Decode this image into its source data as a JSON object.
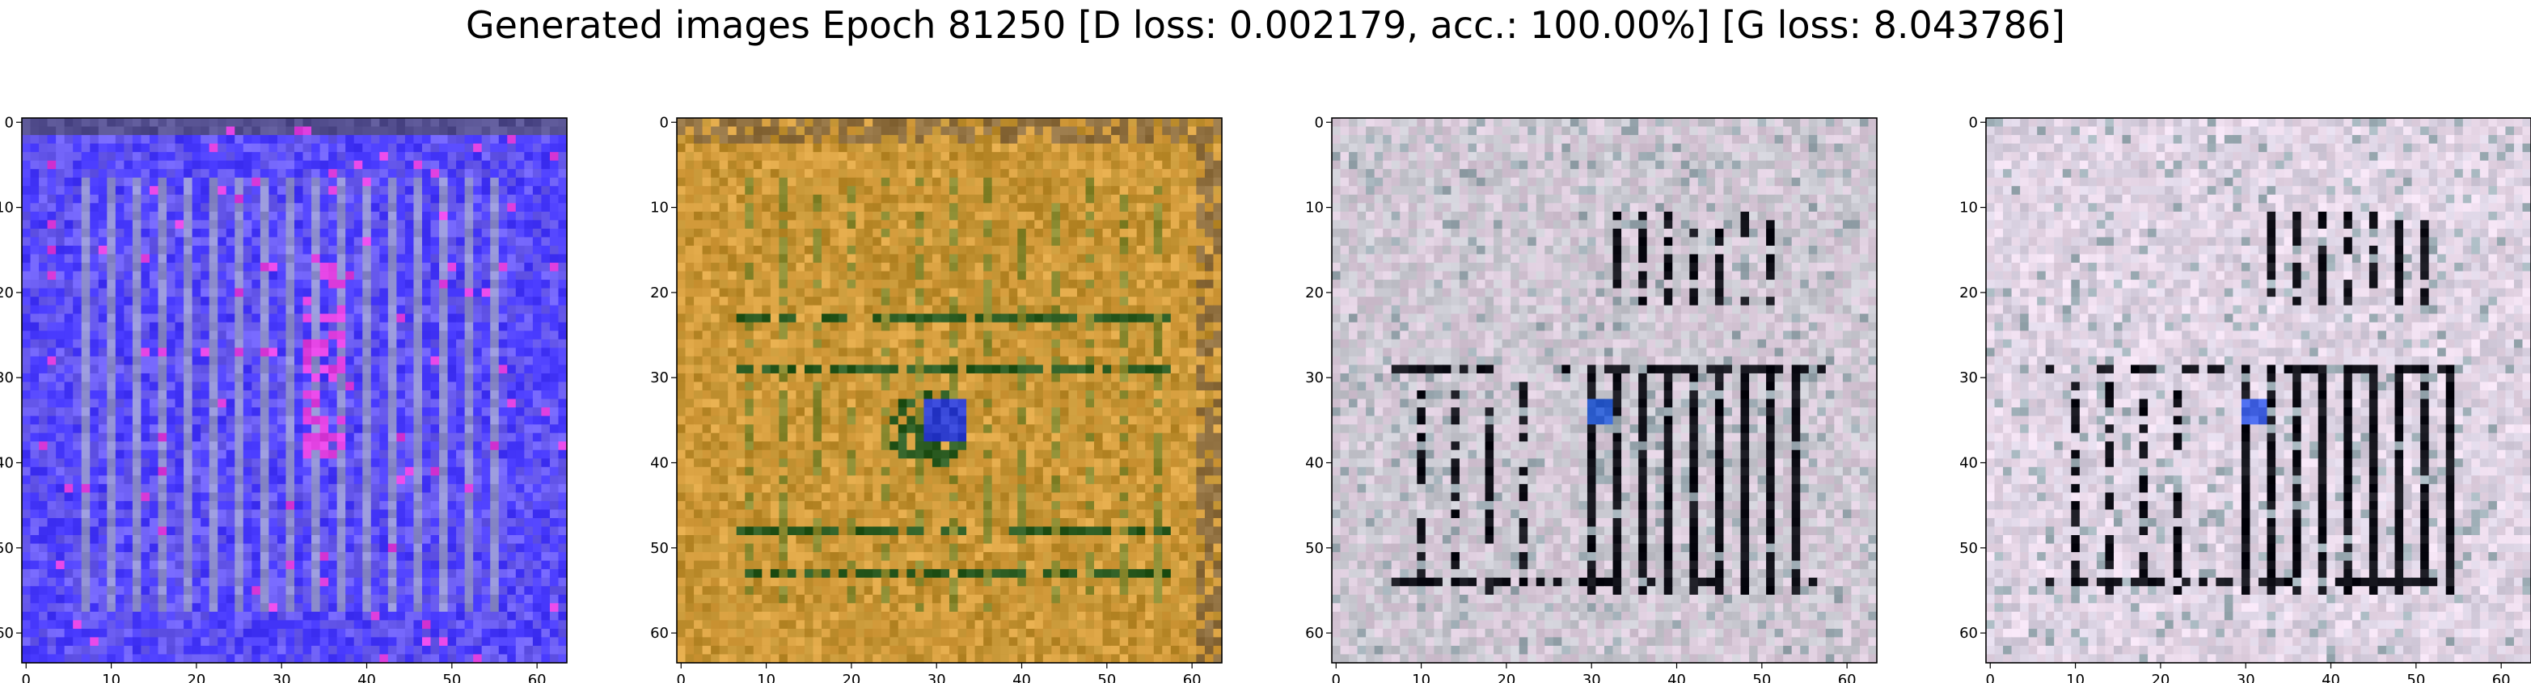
{
  "figure": {
    "title": "Generated images Epoch 81250 [D loss: 0.002179, acc.: 100.00%] [G loss: 8.043786]"
  },
  "chart_data": [
    {
      "type": "heatmap",
      "panel": "image-1",
      "xlim": [
        -0.5,
        63.5
      ],
      "ylim": [
        63.5,
        -0.5
      ],
      "xticks": [
        0,
        10,
        20,
        30,
        40,
        50,
        60
      ],
      "yticks": [
        0,
        10,
        20,
        30,
        40,
        50,
        60
      ],
      "xlabel": "",
      "ylabel": "",
      "grid": false,
      "dominant_colors": [
        "#4a3cff",
        "#6a5cf0",
        "#8f8fd0",
        "#e040e0",
        "#2a2a55"
      ]
    },
    {
      "type": "heatmap",
      "panel": "image-2",
      "xlim": [
        -0.5,
        63.5
      ],
      "ylim": [
        63.5,
        -0.5
      ],
      "xticks": [
        0,
        10,
        20,
        30,
        40,
        50,
        60
      ],
      "yticks": [
        0,
        10,
        20,
        30,
        40,
        50,
        60
      ],
      "xlabel": "",
      "ylabel": "",
      "grid": false,
      "dominant_colors": [
        "#c09030",
        "#d8a040",
        "#8a8a30",
        "#2a5a20",
        "#3040d0"
      ]
    },
    {
      "type": "heatmap",
      "panel": "image-3",
      "xlim": [
        -0.5,
        63.5
      ],
      "ylim": [
        63.5,
        -0.5
      ],
      "xticks": [
        0,
        10,
        20,
        30,
        40,
        50,
        60
      ],
      "yticks": [
        0,
        10,
        20,
        30,
        40,
        50,
        60
      ],
      "xlabel": "",
      "ylabel": "",
      "grid": false,
      "dominant_colors": [
        "#c8c8d0",
        "#d8c8d8",
        "#9aa8b0",
        "#101018",
        "#3060d0"
      ]
    },
    {
      "type": "heatmap",
      "panel": "image-4",
      "xlim": [
        -0.5,
        63.5
      ],
      "ylim": [
        63.5,
        -0.5
      ],
      "xticks": [
        0,
        10,
        20,
        30,
        40,
        50,
        60
      ],
      "yticks": [
        0,
        10,
        20,
        30,
        40,
        50,
        60
      ],
      "xlabel": "",
      "ylabel": "",
      "grid": false,
      "dominant_colors": [
        "#d8d0e0",
        "#e8d8e8",
        "#a0b0b8",
        "#101018",
        "#4060e0"
      ]
    }
  ]
}
